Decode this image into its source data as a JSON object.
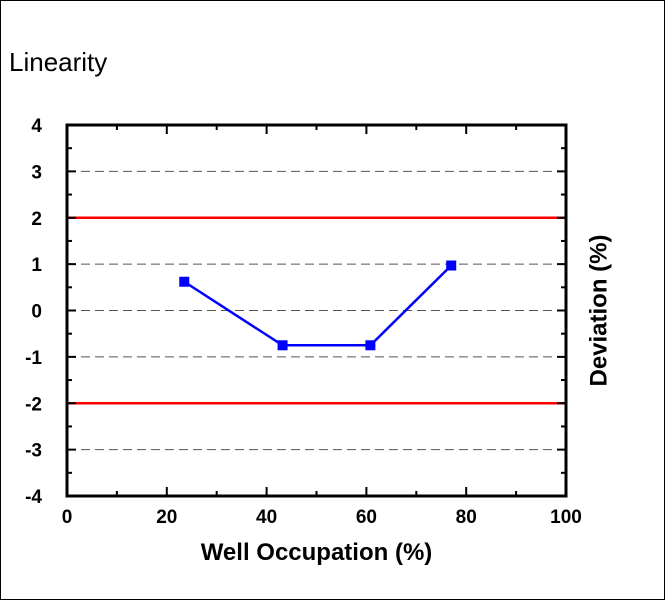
{
  "chart_data": {
    "type": "line",
    "title": "Linearity",
    "xlabel": "Well Occupation (%)",
    "ylabel": "Deviation (%)",
    "xlim": [
      0,
      100
    ],
    "ylim": [
      -4,
      4
    ],
    "xticks": [
      "0",
      "20",
      "40",
      "60",
      "80",
      "100"
    ],
    "yticks": [
      "4",
      "3",
      "2",
      "1",
      "0",
      "-1",
      "-2",
      "-3",
      "-4"
    ],
    "grid": "dashed horizontal at each y tick",
    "y_axis_label_side": "right",
    "series": [
      {
        "x": [
          23.5,
          43.2,
          60.8,
          77.0
        ],
        "y": [
          0.62,
          -0.75,
          -0.75,
          0.97
        ],
        "color": "#0000ff",
        "marker": "square"
      }
    ],
    "limit_lines": [
      {
        "y": 2,
        "color": "#ff0000"
      },
      {
        "y": -2,
        "color": "#ff0000"
      }
    ]
  }
}
